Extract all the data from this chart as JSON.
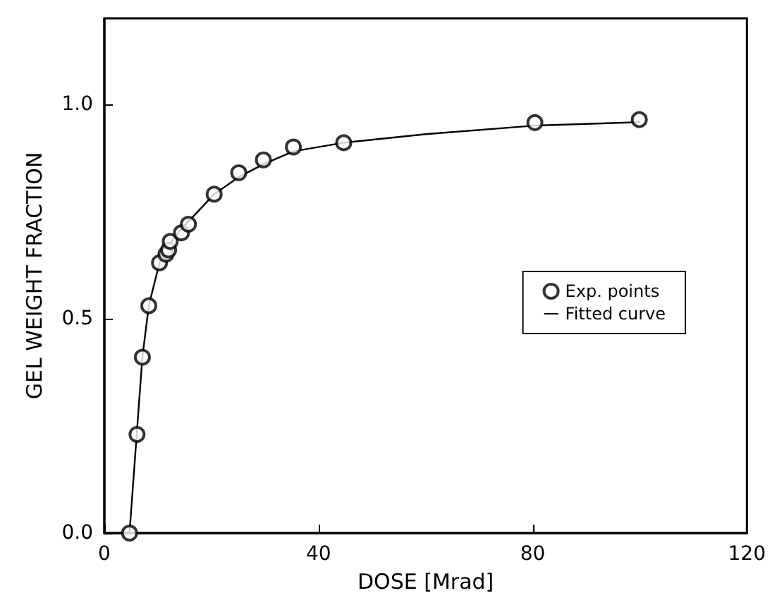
{
  "chart_data": {
    "type": "scatter",
    "xlabel": "DOSE [Mrad]",
    "ylabel": "GEL WEIGHT FRACTION",
    "xlim": [
      0,
      120
    ],
    "xticks": [
      0,
      40,
      80,
      120
    ],
    "ylim": [
      0,
      1.2
    ],
    "yticks": [
      {
        "value": 0,
        "label": "0.0"
      },
      {
        "value": 0.5,
        "label": "0.5"
      },
      {
        "value": 1,
        "label": "1.0"
      }
    ],
    "grid": false,
    "legend": "right",
    "series": [
      {
        "name": "Exp. points",
        "marker": "circle",
        "color": "#000000",
        "x": [
          4.7,
          6.1,
          7.1,
          8.3,
          10.3,
          11.5,
          12,
          12.3,
          14.4,
          15.7,
          20.5,
          25.1,
          29.7,
          35.3,
          44.7,
          80.4,
          99.9
        ],
        "values": [
          0,
          0.23,
          0.41,
          0.53,
          0.63,
          0.65,
          0.66,
          0.68,
          0.7,
          0.72,
          0.79,
          0.84,
          0.87,
          0.9,
          0.91,
          0.957,
          0.964
        ]
      },
      {
        "name": "Fitted curve",
        "type": "line",
        "marker": "none",
        "line_style": "solid",
        "color": "#000000",
        "x": [
          4.7,
          6.1,
          7.1,
          8.3,
          10.3,
          12,
          14.4,
          16,
          20.5,
          25.1,
          29.7,
          35.3,
          44.7,
          60,
          80.4,
          99.9
        ],
        "values": [
          0,
          0.24,
          0.41,
          0.53,
          0.63,
          0.67,
          0.71,
          0.73,
          0.79,
          0.83,
          0.86,
          0.89,
          0.91,
          0.93,
          0.95,
          0.958
        ]
      }
    ]
  }
}
